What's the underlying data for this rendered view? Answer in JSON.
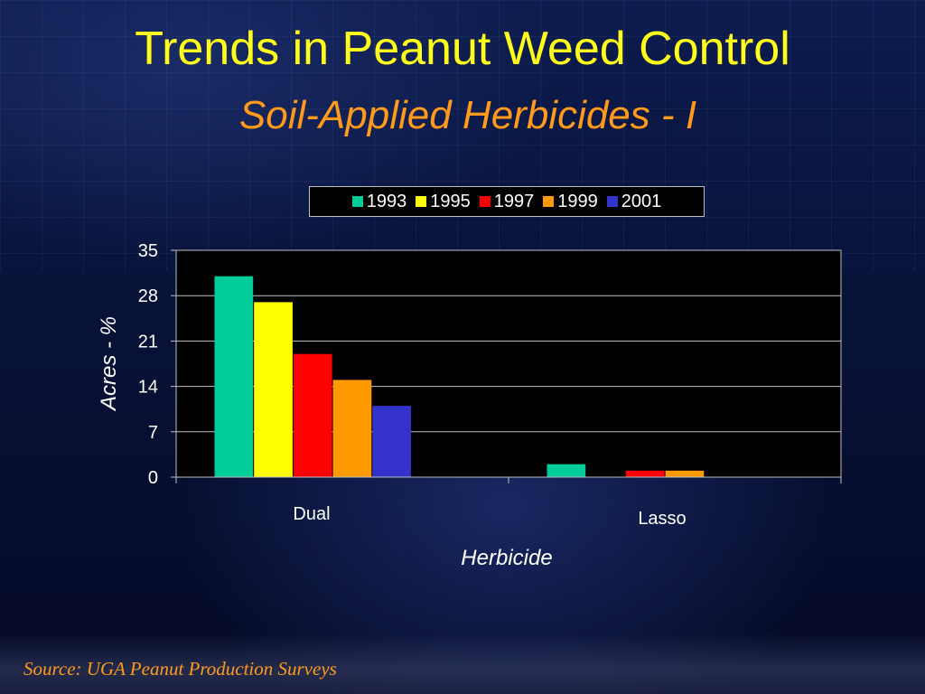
{
  "slide": {
    "title": "Trends in Peanut Weed Control",
    "subtitle": "Soil-Applied Herbicides - I",
    "source": "Source: UGA Peanut Production Surveys"
  },
  "colors": {
    "title": "#ffff1a",
    "subtitle": "#ff9a1a",
    "plot_background": "#000000"
  },
  "chart_data": {
    "type": "bar",
    "title": "",
    "xlabel": "Herbicide",
    "ylabel": "Acres - %",
    "categories": [
      "Dual",
      "Lasso"
    ],
    "ylim": [
      0,
      35
    ],
    "yticks": [
      0,
      7,
      14,
      21,
      28,
      35
    ],
    "ytick_labels": [
      "0",
      "7",
      "14",
      "21",
      "28",
      "35"
    ],
    "grid": true,
    "legend_position": "top",
    "series": [
      {
        "name": "1993",
        "color": "#00cc99",
        "values": [
          31,
          2
        ]
      },
      {
        "name": "1995",
        "color": "#ffff00",
        "values": [
          27,
          0
        ]
      },
      {
        "name": "1997",
        "color": "#ff0000",
        "values": [
          19,
          1
        ]
      },
      {
        "name": "1999",
        "color": "#ff9900",
        "values": [
          15,
          1
        ]
      },
      {
        "name": "2001",
        "color": "#3333cc",
        "values": [
          11,
          0
        ]
      }
    ]
  }
}
